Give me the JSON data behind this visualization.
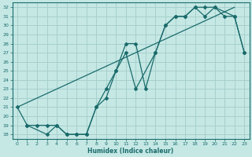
{
  "xlabel": "Humidex (Indice chaleur)",
  "bg_color": "#c5e8e5",
  "grid_color": "#a8d0cc",
  "line_color": "#1a6b6b",
  "xlim": [
    -0.5,
    23.5
  ],
  "ylim": [
    17.5,
    32.5
  ],
  "xticks": [
    0,
    1,
    2,
    3,
    4,
    5,
    6,
    7,
    8,
    9,
    10,
    11,
    12,
    13,
    14,
    15,
    16,
    17,
    18,
    19,
    20,
    21,
    22,
    23
  ],
  "yticks": [
    18,
    19,
    20,
    21,
    22,
    23,
    24,
    25,
    26,
    27,
    28,
    29,
    30,
    31,
    32
  ],
  "line1_x": [
    0,
    22
  ],
  "line1_y": [
    21,
    32
  ],
  "line2_x": [
    0,
    1,
    2,
    3,
    4,
    5,
    6,
    7,
    8,
    9,
    10,
    11,
    12,
    13,
    14,
    15,
    16,
    17,
    18,
    19,
    20,
    21,
    22,
    23
  ],
  "line2_y": [
    21,
    19,
    19,
    19,
    19,
    18,
    18,
    18,
    21,
    23,
    25,
    28,
    28,
    23,
    27,
    30,
    31,
    31,
    32,
    31,
    32,
    31,
    31,
    27
  ],
  "line3_x": [
    1,
    3,
    4,
    5,
    6,
    7,
    8,
    9,
    10,
    11,
    12,
    14,
    15,
    16,
    17,
    18,
    19,
    20,
    22,
    23
  ],
  "line3_y": [
    19,
    18,
    19,
    18,
    18,
    18,
    21,
    22,
    25,
    27,
    23,
    27,
    30,
    31,
    31,
    32,
    32,
    32,
    31,
    27
  ]
}
